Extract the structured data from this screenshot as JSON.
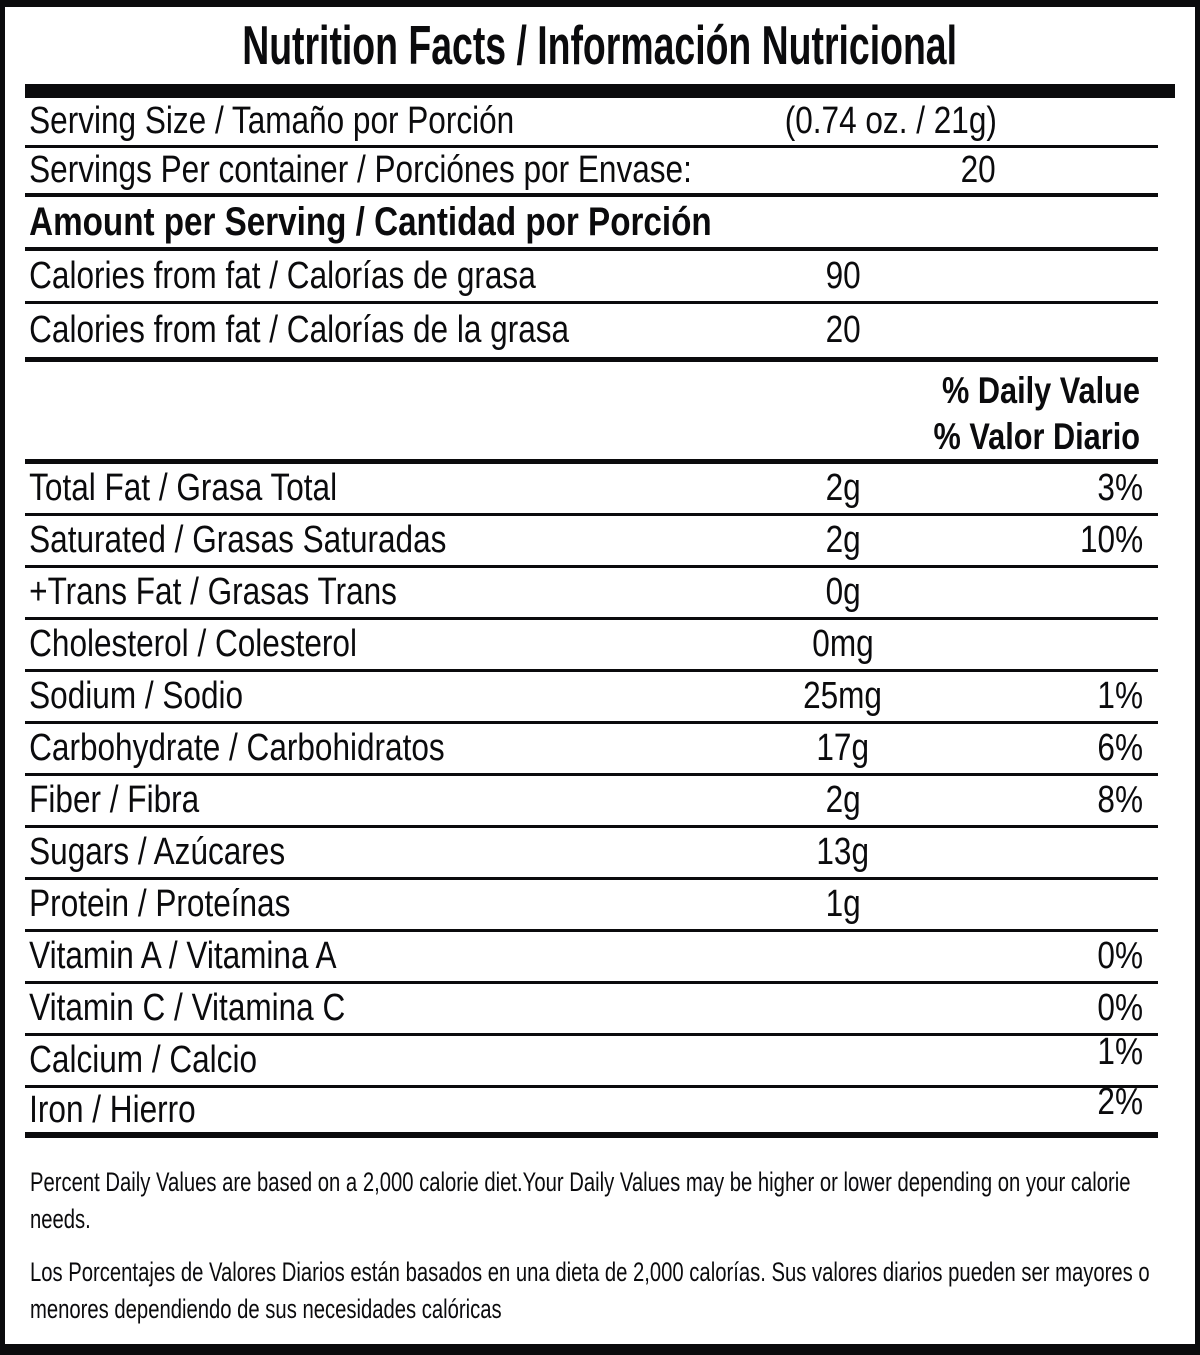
{
  "colors": {
    "ink": "#0b0b0d",
    "paper": "#ffffff"
  },
  "label": {
    "title": "Nutrition Facts / Información Nutricional",
    "serving": {
      "size_label": "Serving Size / Tamaño por Porción",
      "size_value": "(0.74 oz. / 21g)",
      "per_container_label": "Servings Per container / Porciónes por Envase:",
      "per_container_value": "20"
    },
    "amount_header": "Amount per Serving / Cantidad por Porción",
    "calories_rows": [
      {
        "label": "Calories from fat / Calorías de grasa",
        "value": "90"
      },
      {
        "label": "Calories from fat / Calorías de la grasa",
        "value": "20"
      }
    ],
    "daily_value_header_en": "% Daily Value",
    "daily_value_header_es": "% Valor Diario",
    "nutrients": [
      {
        "label": "Total Fat / Grasa Total",
        "value": "2g",
        "dv": "3%"
      },
      {
        "label": "Saturated / Grasas Saturadas",
        "value": "2g",
        "dv": "10%"
      },
      {
        "label": "+Trans Fat / Grasas Trans",
        "value": "0g",
        "dv": ""
      },
      {
        "label": "Cholesterol / Colesterol",
        "value": "0mg",
        "dv": ""
      },
      {
        "label": "Sodium / Sodio",
        "value": "25mg",
        "dv": "1%"
      },
      {
        "label": "Carbohydrate / Carbohidratos",
        "value": "17g",
        "dv": "6%"
      },
      {
        "label": "Fiber / Fibra",
        "value": "2g",
        "dv": "8%"
      },
      {
        "label": "Sugars / Azúcares",
        "value": "13g",
        "dv": ""
      },
      {
        "label": "Protein / Proteínas",
        "value": "1g",
        "dv": ""
      },
      {
        "label": "Vitamin A / Vitamina A",
        "value": "",
        "dv": "0%"
      },
      {
        "label": "Vitamin C / Vitamina C",
        "value": "",
        "dv": "0%"
      },
      {
        "label": "Calcium / Calcio",
        "value": "",
        "dv": "1%"
      },
      {
        "label": "Iron / Hierro",
        "value": "",
        "dv": "2%"
      }
    ],
    "footnotes": {
      "en": "Percent Daily Values are based on a 2,000 calorie diet.Your Daily Values may be higher or lower depending on your calorie needs.",
      "es": "Los Porcentajes de Valores Diarios están basados en una dieta de 2,000 calorías. Sus valores diarios pueden ser mayores o menores dependiendo de sus necesidades calóricas"
    }
  }
}
